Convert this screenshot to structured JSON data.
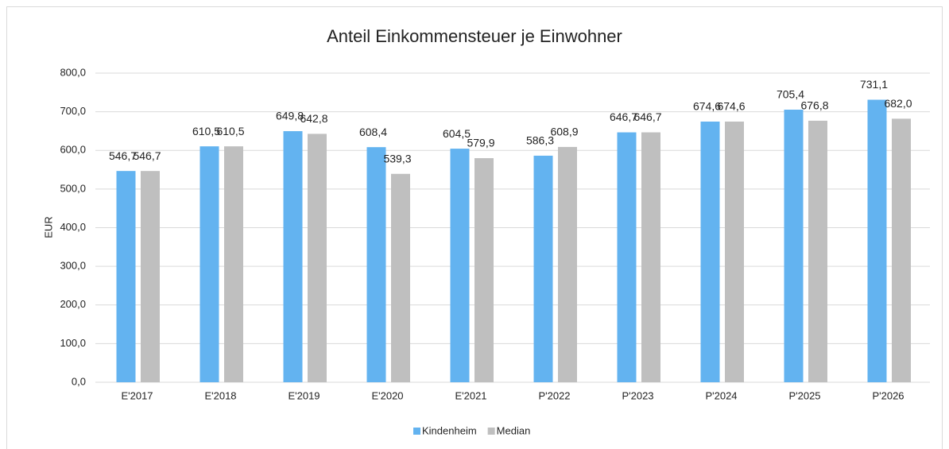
{
  "chart_data": {
    "type": "bar",
    "title": "Anteil Einkommensteuer je Einwohner",
    "y_label": "EUR",
    "categories": [
      "E'2017",
      "E'2018",
      "E'2019",
      "E'2020",
      "E'2021",
      "P'2022",
      "P'2023",
      "P'2024",
      "P'2025",
      "P'2026"
    ],
    "series": [
      {
        "name": "Kindenheim",
        "color": "#63b3f0",
        "values": [
          546.7,
          610.5,
          649.8,
          608.4,
          604.5,
          586.3,
          646.7,
          674.6,
          705.4,
          731.1
        ],
        "value_labels": [
          "546,7",
          "610,5",
          "649,8",
          "608,4",
          "604,5",
          "586,3",
          "646,7",
          "674,6",
          "705,4",
          "731,1"
        ]
      },
      {
        "name": "Median",
        "color": "#bfbfbf",
        "values": [
          546.7,
          610.5,
          642.8,
          539.3,
          579.9,
          608.9,
          646.7,
          674.6,
          676.8,
          682.0
        ],
        "value_labels": [
          "546,7",
          "610,5",
          "642,8",
          "539,3",
          "579,9",
          "608,9",
          "646,7",
          "674,6",
          "676,8",
          "682,0"
        ]
      }
    ],
    "ylim": [
      0,
      800
    ],
    "yticks": [
      {
        "value": 0,
        "label": "0,0"
      },
      {
        "value": 100,
        "label": "100,0"
      },
      {
        "value": 200,
        "label": "200,0"
      },
      {
        "value": 300,
        "label": "300,0"
      },
      {
        "value": 400,
        "label": "400,0"
      },
      {
        "value": 500,
        "label": "500,0"
      },
      {
        "value": 600,
        "label": "600,0"
      },
      {
        "value": 700,
        "label": "700,0"
      },
      {
        "value": 800,
        "label": "800,0"
      }
    ],
    "grid": true,
    "legend": "bottom"
  }
}
